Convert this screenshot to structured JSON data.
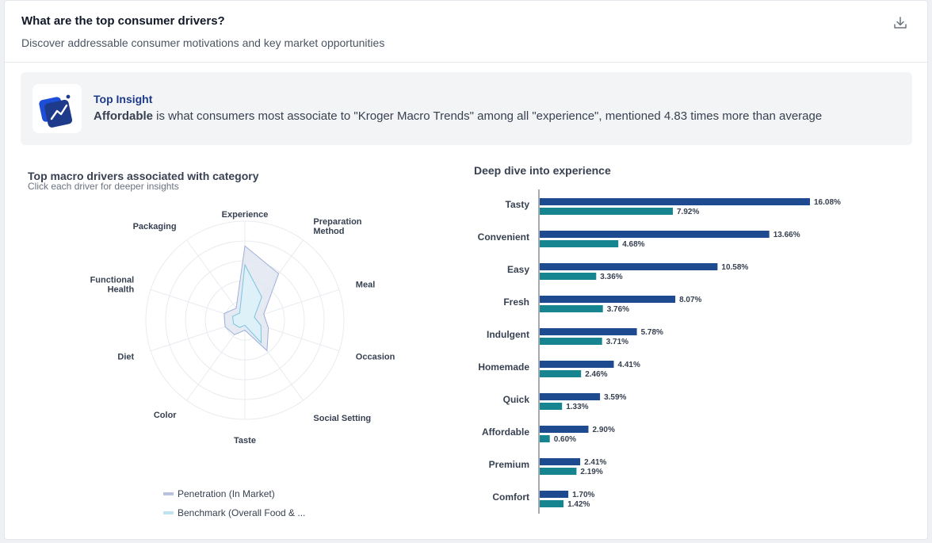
{
  "header": {
    "title": "What are the top consumer drivers?",
    "subtitle": "Discover addressable consumer motivations and key market opportunities",
    "download_icon": "download-icon"
  },
  "insight": {
    "label": "Top Insight",
    "highlight": "Affordable",
    "text": " is what consumers most associate to \"Kroger Macro Trends\" among all \"experience\", mentioned 4.83 times more than average",
    "icon": "trend-chart-icon"
  },
  "radar": {
    "title": "Top macro drivers associated with category",
    "subtitle": "Click each driver for deeper insights"
  },
  "bars": {
    "title": "Deep dive into experience"
  },
  "chart_data": [
    {
      "type": "radar",
      "title": "Top macro drivers associated with category",
      "axes": [
        "Experience",
        "Preparation Method",
        "Meal",
        "Occasion",
        "Social Setting",
        "Taste",
        "Color",
        "Diet",
        "Functional Health",
        "Packaging"
      ],
      "axis_labels": [
        [
          "Experience"
        ],
        [
          "Preparation",
          "Method"
        ],
        [
          "Meal"
        ],
        [
          "Occasion"
        ],
        [
          "Social Setting"
        ],
        [
          "Taste"
        ],
        [
          "Color"
        ],
        [
          "Diet"
        ],
        [
          "Functional",
          "Health"
        ],
        [
          "Packaging"
        ]
      ],
      "rmax": 1.0,
      "grid_levels": 5,
      "series": [
        {
          "name": "Penetration (In Market)",
          "values": [
            0.75,
            0.58,
            0.2,
            0.25,
            0.38,
            0.1,
            0.18,
            0.21,
            0.22,
            0.15
          ],
          "color": "#9fb0d8",
          "fill": "#e1e6f1"
        },
        {
          "name": "Benchmark (Overall Food & ...",
          "values": [
            0.56,
            0.29,
            0.1,
            0.17,
            0.28,
            0.05,
            0.09,
            0.12,
            0.13,
            0.09
          ],
          "color": "#7cc4df",
          "fill": "#ddf1f8"
        }
      ],
      "legend": "bottom"
    },
    {
      "type": "bar",
      "orientation": "horizontal",
      "title": "Deep dive into experience",
      "categories": [
        "Tasty",
        "Convenient",
        "Easy",
        "Fresh",
        "Indulgent",
        "Homemade",
        "Quick",
        "Affordable",
        "Premium",
        "Comfort"
      ],
      "series": [
        {
          "values": [
            16.08,
            13.66,
            10.58,
            8.07,
            5.78,
            4.41,
            3.59,
            2.9,
            2.41,
            1.7
          ],
          "labels": [
            "16.08%",
            "13.66%",
            "10.58%",
            "8.07%",
            "5.78%",
            "4.41%",
            "3.59%",
            "2.90%",
            "2.41%",
            "1.70%"
          ],
          "color": "#1e4a8f"
        },
        {
          "values": [
            7.92,
            4.68,
            3.36,
            3.76,
            3.71,
            2.46,
            1.33,
            0.6,
            2.19,
            1.42
          ],
          "labels": [
            "7.92%",
            "4.68%",
            "3.36%",
            "3.76%",
            "3.71%",
            "2.46%",
            "1.33%",
            "0.60%",
            "2.19%",
            "1.42%"
          ],
          "color": "#17858f"
        }
      ],
      "unit": "%",
      "xlim": [
        0,
        16.08
      ]
    }
  ]
}
